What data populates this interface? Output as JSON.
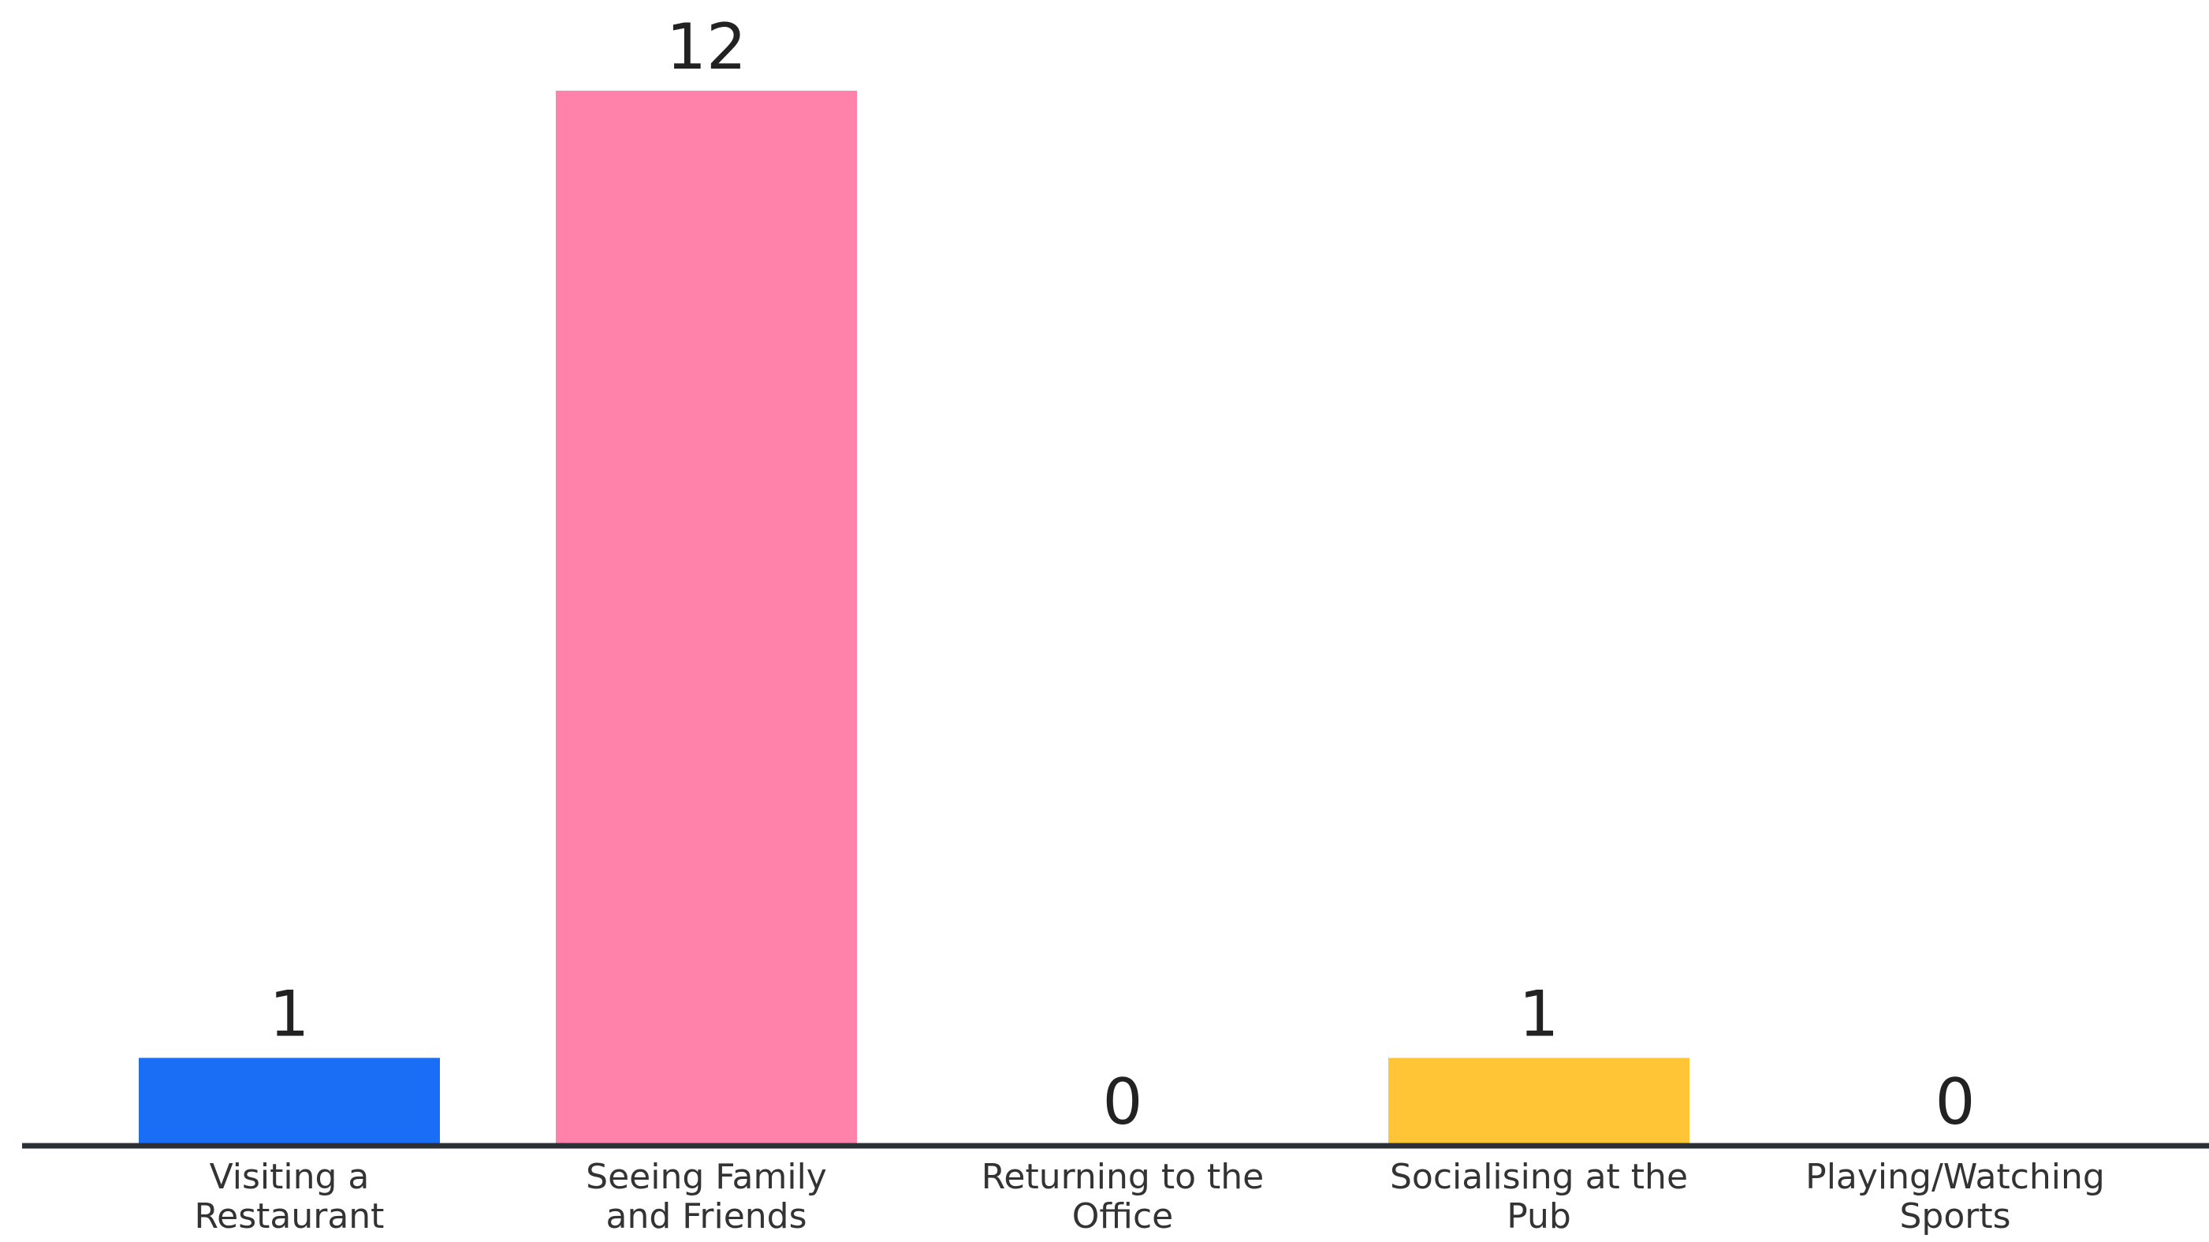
{
  "chart_data": {
    "type": "bar",
    "title": "",
    "xlabel": "",
    "ylabel": "",
    "categories": [
      [
        "Visiting a",
        "Restaurant"
      ],
      [
        "Seeing Family",
        "and Friends"
      ],
      [
        "Returning to the",
        "Office"
      ],
      [
        "Socialising at the",
        "Pub"
      ],
      [
        "Playing/Watching",
        "Sports"
      ]
    ],
    "values": [
      1,
      12,
      0,
      1,
      0
    ],
    "colors": [
      "#1a6ef5",
      "#ff82aa",
      "#1a6ef5",
      "#ffc537",
      "#1a6ef5"
    ],
    "ylim": [
      0,
      12
    ],
    "grid": false,
    "axis_color": "#2b2f36"
  }
}
